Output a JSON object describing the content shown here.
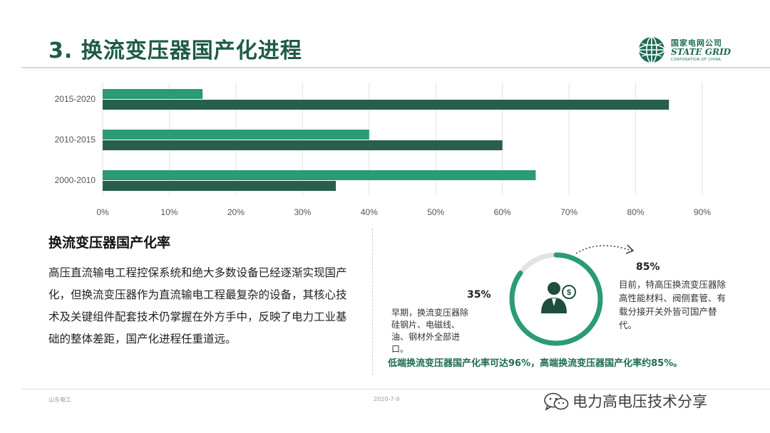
{
  "header": {
    "title": "3. 换流变压器国产化进程"
  },
  "logo": {
    "name_cn": "国家电网公司",
    "name_en": "STATE GRID",
    "subtitle": "CORPORATION OF CHINA"
  },
  "chart_data": {
    "type": "bar",
    "orientation": "horizontal",
    "categories": [
      "2015-2020",
      "2010-2015",
      "2000-2010"
    ],
    "series": [
      {
        "values": [
          15,
          40,
          65
        ],
        "color": "#2a9b74"
      },
      {
        "values": [
          85,
          60,
          35
        ],
        "color": "#275e4d"
      }
    ],
    "x_ticks": [
      "0%",
      "10%",
      "20%",
      "30%",
      "40%",
      "50%",
      "60%",
      "70%",
      "80%",
      "90%"
    ],
    "xlim": [
      0,
      90
    ],
    "grid": true,
    "title": "",
    "xlabel": "",
    "ylabel": ""
  },
  "section": {
    "heading": "换流变压器国产化率",
    "body": "高压直流输电工程控保系统和绝大多数设备已经逐渐实现国产化，但换流变压器作为直流输电工程最复杂的设备，其核心技术及关键组件配套技术仍掌握在外方手中，反映了电力工业基础的整体差距，国产化进程任重道远。"
  },
  "stats": {
    "early_pct": "35%",
    "early_text": "早期，换流变压器除硅钢片、电磁线、油、钢材外全部进口。",
    "now_pct": "85%",
    "now_text": "目前，特高压换流变压器除高性能材料、阀侧套管、有载分接开关外皆可国产替代。",
    "summary": "低端换流变压器国产化率可达96%，高端换流变压器国产化率约85%。",
    "ring_fraction": 0.85,
    "ring_color": "#2a9b74"
  },
  "footer": {
    "left": "山东电工",
    "date": "2020-7-9",
    "watermark": "电力高电压技术分享"
  },
  "icons": {
    "logo": "state-grid-globe-icon",
    "person": "person-money-icon",
    "watermark": "wechat-icon"
  }
}
